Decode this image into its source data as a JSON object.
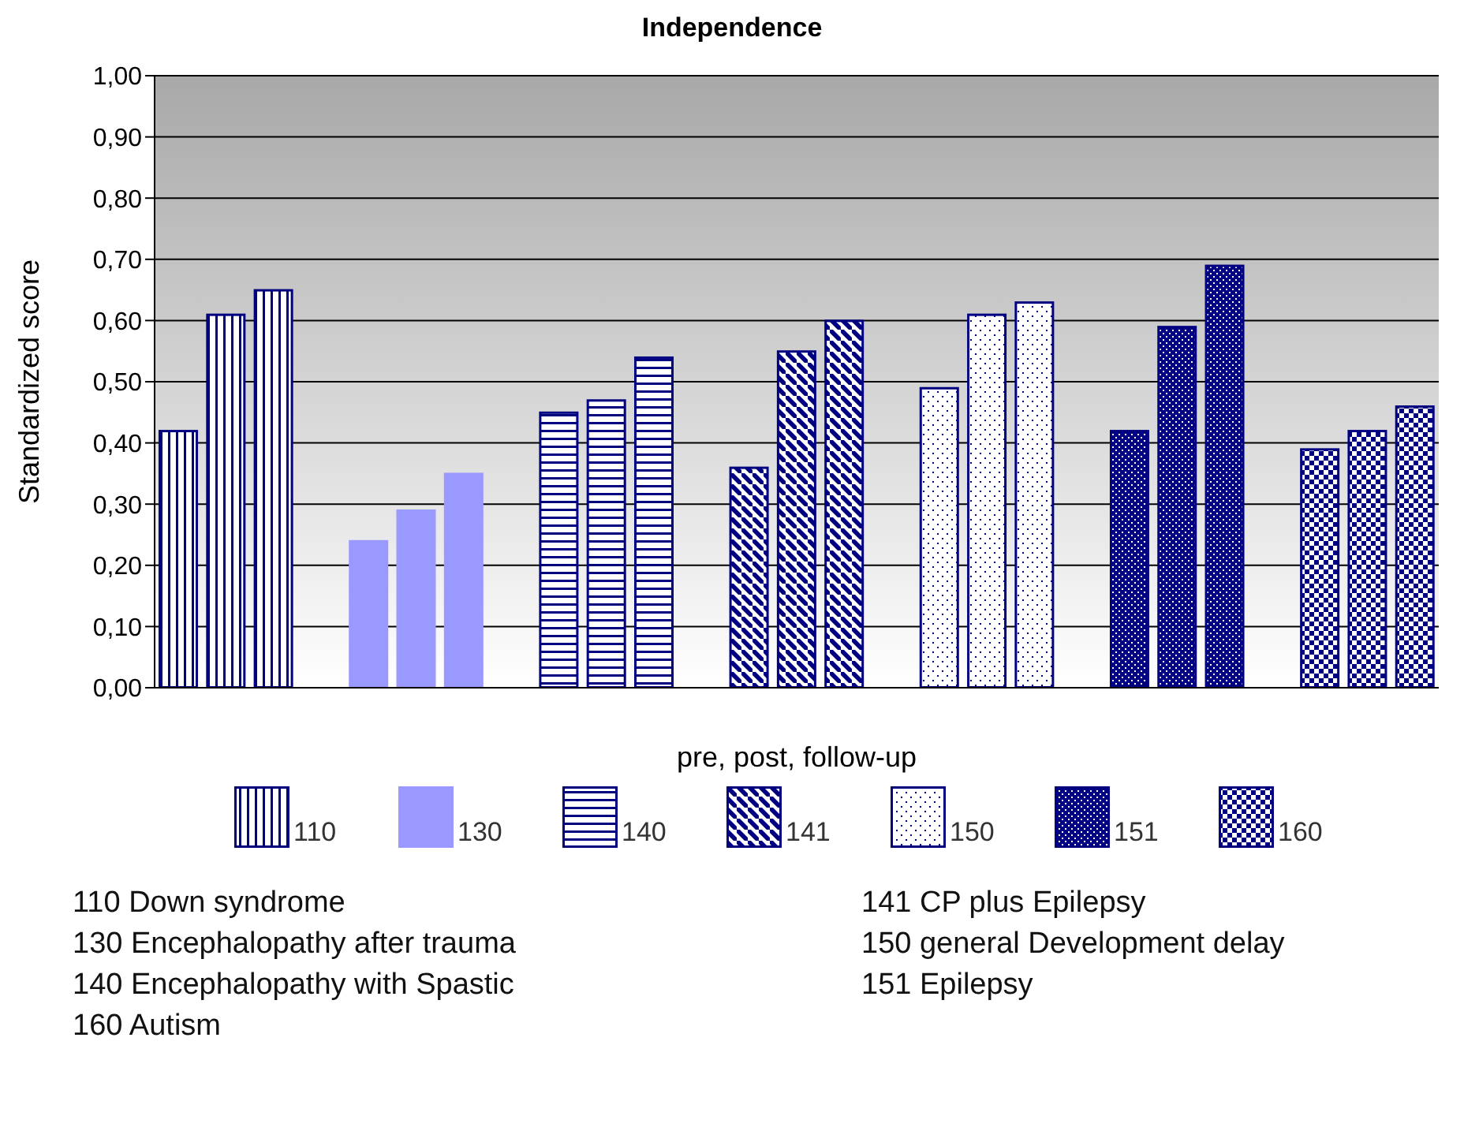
{
  "chart_data": {
    "type": "bar",
    "title": "Independence",
    "xlabel": "pre,  post,  follow-up",
    "ylabel": "Standardized score",
    "categories": [
      null,
      null,
      null,
      null,
      null,
      null,
      null,
      null,
      null,
      null,
      null,
      null,
      null,
      null,
      null,
      null,
      null,
      null,
      null,
      null,
      null,
      null,
      null,
      null,
      null,
      null,
      null
    ],
    "stacked": true,
    "series": [
      {
        "name": "110",
        "color": "#000080",
        "values": [
          0.42,
          0.61,
          0.65,
          null,
          null,
          null,
          null,
          null,
          null,
          null,
          null,
          null,
          null,
          null,
          null,
          null,
          null,
          null,
          null,
          null,
          null,
          null,
          null,
          null,
          null,
          null,
          null
        ]
      },
      {
        "name": "130",
        "color": "#9999ff",
        "values": [
          null,
          null,
          null,
          null,
          0.24,
          0.29,
          0.35,
          null,
          null,
          null,
          null,
          null,
          null,
          null,
          null,
          null,
          null,
          null,
          null,
          null,
          null,
          null,
          null,
          null,
          null,
          null,
          null
        ]
      },
      {
        "name": "140",
        "color": "#000080",
        "values": [
          null,
          null,
          null,
          null,
          null,
          null,
          null,
          null,
          0.45,
          0.47,
          0.54,
          null,
          null,
          null,
          null,
          null,
          null,
          null,
          null,
          null,
          null,
          null,
          null,
          null,
          null,
          null,
          null
        ]
      },
      {
        "name": "141",
        "color": "#000080",
        "values": [
          null,
          null,
          null,
          null,
          null,
          null,
          null,
          null,
          null,
          null,
          null,
          null,
          0.36,
          0.55,
          0.6,
          null,
          null,
          null,
          null,
          null,
          null,
          null,
          null,
          null,
          null,
          null,
          null
        ]
      },
      {
        "name": "150",
        "color": "#000080",
        "values": [
          null,
          null,
          null,
          null,
          null,
          null,
          null,
          null,
          null,
          null,
          null,
          null,
          null,
          null,
          null,
          null,
          0.49,
          0.61,
          0.63,
          null,
          null,
          null,
          null,
          null,
          null,
          null,
          null
        ]
      },
      {
        "name": "151",
        "color": "#000080",
        "values": [
          null,
          null,
          null,
          null,
          null,
          null,
          null,
          null,
          null,
          null,
          null,
          null,
          null,
          null,
          null,
          null,
          null,
          null,
          null,
          null,
          0.42,
          0.59,
          0.69,
          null,
          null,
          null,
          null
        ]
      },
      {
        "name": "160",
        "color": "#000080",
        "values": [
          null,
          null,
          null,
          null,
          null,
          null,
          null,
          null,
          null,
          null,
          null,
          null,
          null,
          null,
          null,
          null,
          null,
          null,
          null,
          null,
          null,
          null,
          null,
          null,
          0.39,
          0.42,
          0.46
        ]
      }
    ],
    "ylim": [
      0,
      1
    ],
    "yticks": [
      {
        "value": 0,
        "label": "0,00"
      },
      {
        "value": 0.1,
        "label": "0,10"
      },
      {
        "value": 0.2,
        "label": "0,20"
      },
      {
        "value": 0.3,
        "label": "0,30"
      },
      {
        "value": 0.4,
        "label": "0,40"
      },
      {
        "value": 0.5,
        "label": "0,50"
      },
      {
        "value": 0.6,
        "label": "0,60"
      },
      {
        "value": 0.7,
        "label": "0,70"
      },
      {
        "value": 0.8,
        "label": "0,80"
      },
      {
        "value": 0.9,
        "label": "0,90"
      },
      {
        "value": 1,
        "label": "1,00"
      }
    ],
    "grid": "y",
    "legend": "bottom",
    "tick_labels": "y",
    "annotations": [
      "110 Down syndrome",
      "141 CP plus Epilepsy",
      "130 Encephalopathy after trauma",
      "150 general Development delay",
      "140 Encephalopathy with Spastic",
      "151 Epilepsy",
      "160 Autism"
    ]
  }
}
